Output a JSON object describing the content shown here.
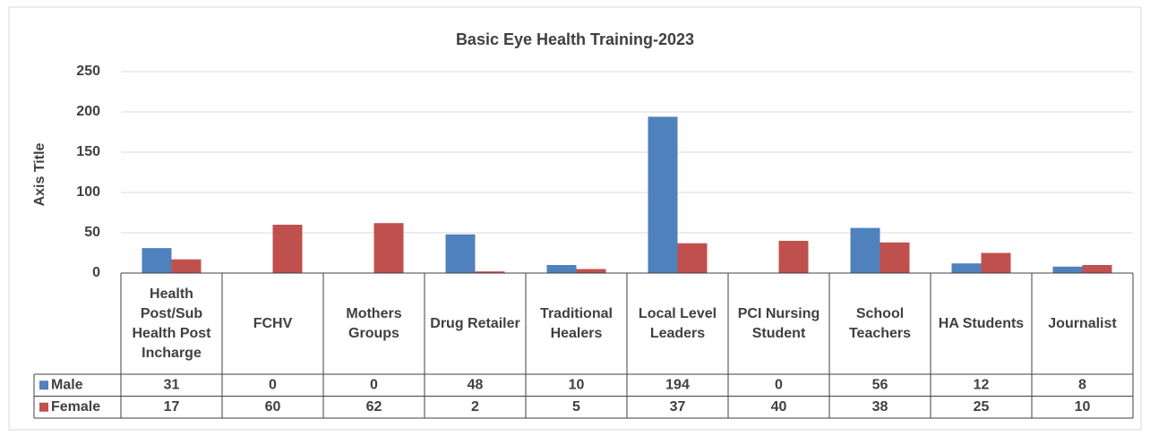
{
  "chart_data": {
    "type": "bar",
    "title": "Basic Eye Health Training-2023",
    "y_label": "Axis Title",
    "categories": [
      "Health Post/Sub Health Post Incharge",
      "FCHV",
      "Mothers Groups",
      "Drug Retailer",
      "Traditional Healers",
      "Local Level Leaders",
      "PCI Nursing Student",
      "School Teachers",
      "HA Students",
      "Journalist"
    ],
    "series": [
      {
        "name": "Male",
        "color": "#4f81bd",
        "values": [
          31,
          0,
          0,
          48,
          10,
          194,
          0,
          56,
          12,
          8
        ]
      },
      {
        "name": "Female",
        "color": "#c0504d",
        "values": [
          17,
          60,
          62,
          2,
          5,
          37,
          40,
          38,
          25,
          10
        ]
      }
    ],
    "ylim": [
      0,
      250
    ],
    "yticks": [
      0,
      50,
      100,
      150,
      200,
      250
    ],
    "grid": true,
    "data_table": true
  }
}
